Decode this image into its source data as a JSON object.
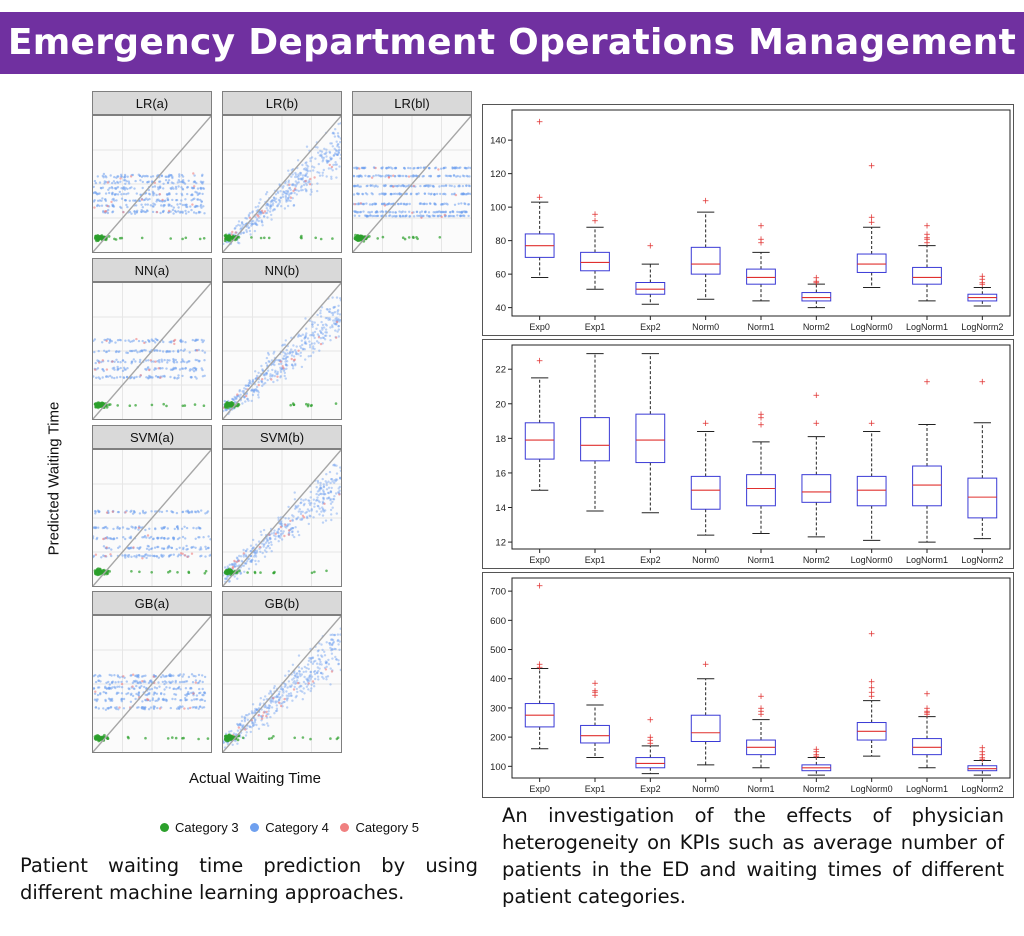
{
  "header": {
    "title": "Emergency Department Operations Management"
  },
  "scatter": {
    "y_axis_label": "Predicted Waiting Time",
    "x_axis_label": "Actual Waiting Time",
    "legend": [
      {
        "label": "Category 3",
        "color": "#2ca02c"
      },
      {
        "label": "Category 4",
        "color": "#6fa0ef"
      },
      {
        "label": "Category 5",
        "color": "#f08080"
      }
    ],
    "panels": [
      {
        "id": "lr-a",
        "label": "LR(a)"
      },
      {
        "id": "lr-b",
        "label": "LR(b)"
      },
      {
        "id": "lr-bl",
        "label": "LR(bl)"
      },
      {
        "id": "nn-a",
        "label": "NN(a)"
      },
      {
        "id": "nn-b",
        "label": "NN(b)"
      },
      {
        "id": "svm-a",
        "label": "SVM(a)"
      },
      {
        "id": "svm-b",
        "label": "SVM(b)"
      },
      {
        "id": "gb-a",
        "label": "GB(a)"
      },
      {
        "id": "gb-b",
        "label": "GB(b)"
      }
    ]
  },
  "captions": {
    "left": "Patient waiting time prediction by using different machine learning approaches.",
    "right": "An investigation of the effects of physician heterogeneity on KPIs such as average number of patients in the ED and waiting times of different patient categories."
  },
  "chart_data": [
    {
      "type": "box",
      "title": "",
      "categories": [
        "Exp0",
        "Exp1",
        "Exp2",
        "Norm0",
        "Norm1",
        "Norm2",
        "LogNorm0",
        "LogNorm1",
        "LogNorm2"
      ],
      "yticks": [
        40,
        60,
        80,
        100,
        120,
        140
      ],
      "ylim": [
        35,
        158
      ],
      "boxes": [
        {
          "min": 58,
          "q1": 70,
          "median": 77,
          "q3": 84,
          "max": 103,
          "outliers": [
            106,
            151
          ]
        },
        {
          "min": 51,
          "q1": 62,
          "median": 67,
          "q3": 73,
          "max": 88,
          "outliers": [
            92,
            96
          ]
        },
        {
          "min": 42,
          "q1": 48,
          "median": 51,
          "q3": 55,
          "max": 66,
          "outliers": [
            77
          ]
        },
        {
          "min": 45,
          "q1": 60,
          "median": 66,
          "q3": 76,
          "max": 97,
          "outliers": [
            104
          ]
        },
        {
          "min": 44,
          "q1": 54,
          "median": 58,
          "q3": 63,
          "max": 73,
          "outliers": [
            79,
            81,
            89
          ]
        },
        {
          "min": 40,
          "q1": 44,
          "median": 46,
          "q3": 49,
          "max": 54,
          "outliers": [
            55,
            56,
            58
          ]
        },
        {
          "min": 52,
          "q1": 61,
          "median": 66,
          "q3": 72,
          "max": 88,
          "outliers": [
            91,
            94,
            125
          ]
        },
        {
          "min": 44,
          "q1": 54,
          "median": 58,
          "q3": 64,
          "max": 77,
          "outliers": [
            79,
            81,
            82,
            84,
            89
          ]
        },
        {
          "min": 41,
          "q1": 44,
          "median": 46,
          "q3": 48,
          "max": 52,
          "outliers": [
            54,
            55,
            57,
            59
          ]
        }
      ]
    },
    {
      "type": "box",
      "title": "",
      "categories": [
        "Exp0",
        "Exp1",
        "Exp2",
        "Norm0",
        "Norm1",
        "Norm2",
        "LogNorm0",
        "LogNorm1",
        "LogNorm2"
      ],
      "yticks": [
        12,
        14,
        16,
        18,
        20,
        22
      ],
      "ylim": [
        11.6,
        23.4
      ],
      "boxes": [
        {
          "min": 15.0,
          "q1": 16.8,
          "median": 17.9,
          "q3": 18.9,
          "max": 21.5,
          "outliers": [
            22.5
          ]
        },
        {
          "min": 13.8,
          "q1": 16.7,
          "median": 17.6,
          "q3": 19.2,
          "max": 22.9,
          "outliers": []
        },
        {
          "min": 13.7,
          "q1": 16.6,
          "median": 17.9,
          "q3": 19.4,
          "max": 22.9,
          "outliers": []
        },
        {
          "min": 12.4,
          "q1": 13.9,
          "median": 15.0,
          "q3": 15.8,
          "max": 18.4,
          "outliers": [
            18.9
          ]
        },
        {
          "min": 12.5,
          "q1": 14.1,
          "median": 15.1,
          "q3": 15.9,
          "max": 17.8,
          "outliers": [
            18.8,
            19.2,
            19.4
          ]
        },
        {
          "min": 12.3,
          "q1": 14.3,
          "median": 14.9,
          "q3": 15.9,
          "max": 18.1,
          "outliers": [
            18.9,
            20.5
          ]
        },
        {
          "min": 12.1,
          "q1": 14.1,
          "median": 15.0,
          "q3": 15.8,
          "max": 18.4,
          "outliers": [
            18.9
          ]
        },
        {
          "min": 12.0,
          "q1": 14.1,
          "median": 15.3,
          "q3": 16.4,
          "max": 18.8,
          "outliers": [
            21.3
          ]
        },
        {
          "min": 12.2,
          "q1": 13.4,
          "median": 14.6,
          "q3": 15.7,
          "max": 18.9,
          "outliers": [
            21.3
          ]
        }
      ]
    },
    {
      "type": "box",
      "title": "",
      "categories": [
        "Exp0",
        "Exp1",
        "Exp2",
        "Norm0",
        "Norm1",
        "Norm2",
        "LogNorm0",
        "LogNorm1",
        "LogNorm2"
      ],
      "yticks": [
        100,
        200,
        300,
        400,
        500,
        600,
        700
      ],
      "ylim": [
        60,
        745
      ],
      "boxes": [
        {
          "min": 160,
          "q1": 235,
          "median": 275,
          "q3": 315,
          "max": 435,
          "outliers": [
            440,
            450,
            720
          ]
        },
        {
          "min": 130,
          "q1": 180,
          "median": 205,
          "q3": 240,
          "max": 310,
          "outliers": [
            345,
            355,
            360,
            385
          ]
        },
        {
          "min": 75,
          "q1": 95,
          "median": 110,
          "q3": 130,
          "max": 170,
          "outliers": [
            180,
            190,
            200,
            260
          ]
        },
        {
          "min": 105,
          "q1": 185,
          "median": 215,
          "q3": 275,
          "max": 400,
          "outliers": [
            450
          ]
        },
        {
          "min": 95,
          "q1": 140,
          "median": 165,
          "q3": 190,
          "max": 260,
          "outliers": [
            280,
            290,
            300,
            340
          ]
        },
        {
          "min": 70,
          "q1": 85,
          "median": 95,
          "q3": 105,
          "max": 130,
          "outliers": [
            135,
            140,
            150,
            160
          ]
        },
        {
          "min": 135,
          "q1": 190,
          "median": 220,
          "q3": 250,
          "max": 325,
          "outliers": [
            340,
            355,
            370,
            390,
            555
          ]
        },
        {
          "min": 95,
          "q1": 140,
          "median": 165,
          "q3": 195,
          "max": 270,
          "outliers": [
            280,
            285,
            290,
            300,
            350
          ]
        },
        {
          "min": 70,
          "q1": 85,
          "median": 92,
          "q3": 102,
          "max": 120,
          "outliers": [
            125,
            130,
            140,
            150,
            165
          ]
        }
      ]
    }
  ]
}
